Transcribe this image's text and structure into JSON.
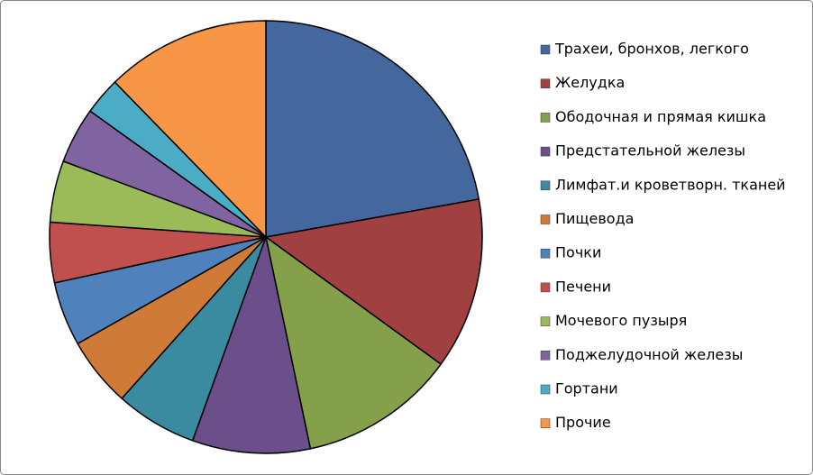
{
  "chart_data": {
    "type": "pie",
    "categories": [
      "Трахеи, бронхов, легкого",
      "Желудка",
      "Ободочная и прямая кишка",
      "Предстательной  железы",
      "Лимфат.и кроветворн. тканей",
      "Пищевода",
      "Почки",
      "Печени",
      "Мочевого пузыря",
      "Поджелудочной железы",
      "Гортани",
      "Прочие"
    ],
    "values": [
      22.2,
      12.8,
      11.7,
      8.8,
      6.1,
      5.2,
      4.8,
      4.5,
      4.6,
      4.2,
      2.8,
      12.3
    ],
    "colors": [
      "#44689d",
      "#a04040",
      "#84a04a",
      "#6c4f8a",
      "#3b8ba0",
      "#d07a38",
      "#4f81bd",
      "#c0504d",
      "#9bbb59",
      "#8064a2",
      "#4bacc6",
      "#f79646"
    ],
    "legend": "right"
  }
}
